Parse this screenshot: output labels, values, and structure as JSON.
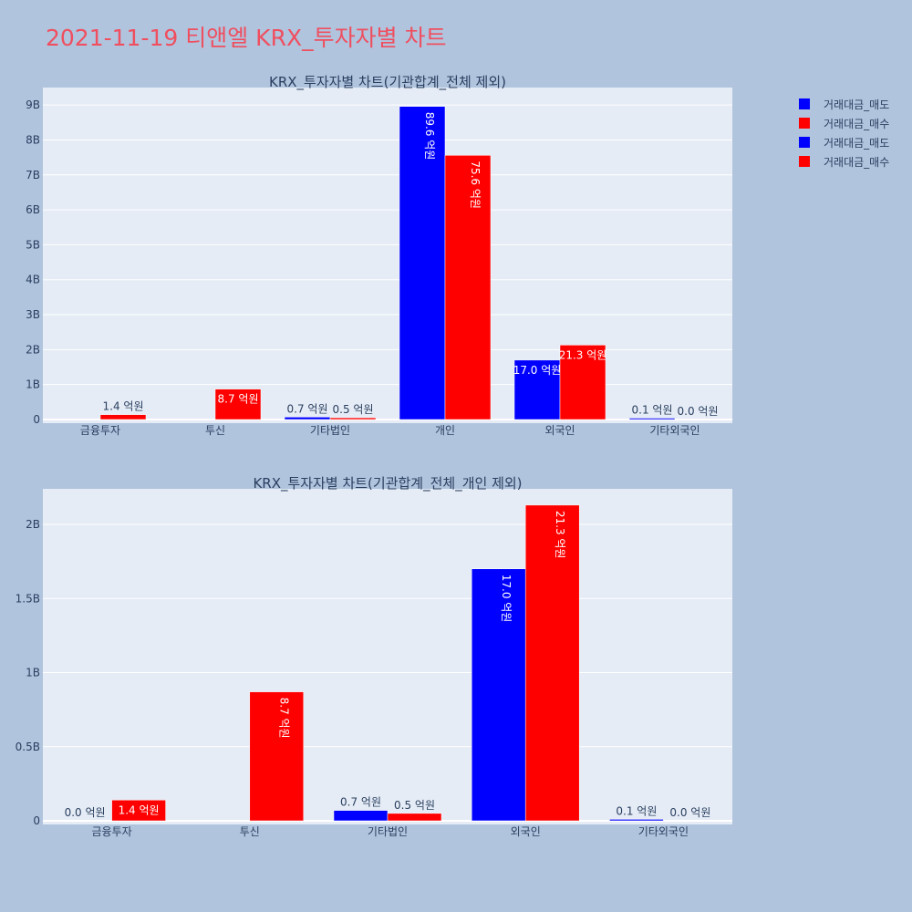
{
  "title": "2021-11-19 티앤엘 KRX_투자자별 차트",
  "colors": {
    "sell": "#0000ff",
    "buy": "#ff0000",
    "plot_bg": "#e5ecf6",
    "page_bg": "#b0c4de",
    "title": "#ef4f5f"
  },
  "legend": {
    "placement": "top-right",
    "items": [
      {
        "label": "거래대금_매도",
        "color": "#0000ff"
      },
      {
        "label": "거래대금_매수",
        "color": "#ff0000"
      },
      {
        "label": "거래대금_매도",
        "color": "#0000ff"
      },
      {
        "label": "거래대금_매수",
        "color": "#ff0000"
      }
    ]
  },
  "chart_data": [
    {
      "type": "bar",
      "title": "KRX_투자자별 차트(기관합계_전체 제외)",
      "categories": [
        "금융투자",
        "투신",
        "기타법인",
        "개인",
        "외국인",
        "기타외국인"
      ],
      "series": [
        {
          "name": "거래대금_매도",
          "values": [
            0.0,
            0.0,
            0.07,
            8.96,
            1.7,
            0.01
          ],
          "labels": [
            "",
            "",
            "0.7 억원",
            "89.6 억원",
            "17.0 억원",
            "0.1 억원"
          ]
        },
        {
          "name": "거래대금_매수",
          "values": [
            0.14,
            0.87,
            0.05,
            7.56,
            2.13,
            0.0
          ],
          "labels": [
            "1.4 억원",
            "8.7 억원",
            "0.5 억원",
            "75.6 억원",
            "21.3 억원",
            "0.0 억원"
          ]
        }
      ],
      "yticks": [
        0,
        1,
        2,
        3,
        4,
        5,
        6,
        7,
        8,
        9
      ],
      "ytick_labels": [
        "0",
        "1B",
        "2B",
        "3B",
        "4B",
        "5B",
        "6B",
        "7B",
        "8B",
        "9B"
      ],
      "ylim": [
        0,
        9.5
      ]
    },
    {
      "type": "bar",
      "title": "KRX_투자자별 차트(기관합계_전체_개인 제외)",
      "categories": [
        "금융투자",
        "투신",
        "기타법인",
        "외국인",
        "기타외국인"
      ],
      "series": [
        {
          "name": "거래대금_매도",
          "values": [
            0.0,
            0.0,
            0.07,
            1.7,
            0.01
          ],
          "labels": [
            "0.0 억원",
            "",
            "0.7 억원",
            "17.0 억원",
            "0.1 억원"
          ]
        },
        {
          "name": "거래대금_매수",
          "values": [
            0.14,
            0.87,
            0.05,
            2.13,
            0.0
          ],
          "labels": [
            "1.4 억원",
            "8.7 억원",
            "0.5 억원",
            "21.3 억원",
            "0.0 억원"
          ]
        }
      ],
      "yticks": [
        0,
        0.5,
        1,
        1.5,
        2
      ],
      "ytick_labels": [
        "0",
        "0.5B",
        "1B",
        "1.5B",
        "2B"
      ],
      "ylim": [
        0,
        2.24
      ]
    }
  ]
}
